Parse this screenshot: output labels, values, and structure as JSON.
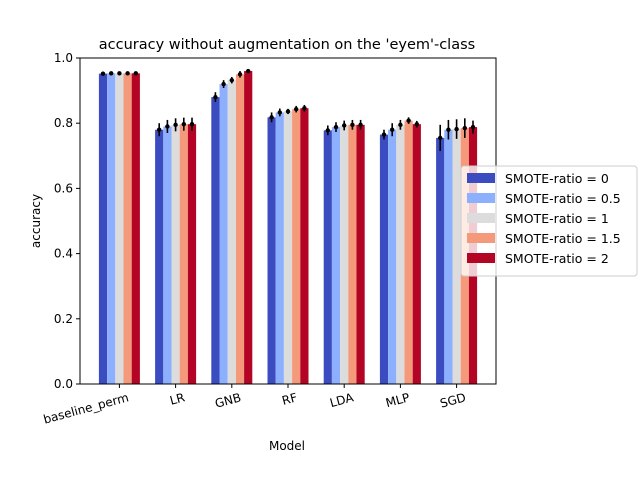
{
  "chart_data": {
    "type": "bar",
    "title": "accuracy without augmentation on the 'eyem'-class",
    "xlabel": "Model",
    "ylabel": "accuracy",
    "ylim": [
      0,
      1.0
    ],
    "yticks": [
      "0.0",
      "0.2",
      "0.4",
      "0.6",
      "0.8",
      "1.0"
    ],
    "categories": [
      "baseline_perm",
      "LR",
      "GNB",
      "RF",
      "LDA",
      "MLP",
      "SGD"
    ],
    "legend_position": "center-right",
    "grid": false,
    "series": [
      {
        "name": "SMOTE-ratio = 0",
        "color": "#3b4cc0",
        "values": [
          0.952,
          0.78,
          0.88,
          0.818,
          0.778,
          0.765,
          0.755
        ],
        "errors": [
          0.006,
          0.02,
          0.015,
          0.015,
          0.015,
          0.015,
          0.04
        ]
      },
      {
        "name": "SMOTE-ratio = 0.5",
        "color": "#8db0fe",
        "values": [
          0.953,
          0.79,
          0.92,
          0.833,
          0.788,
          0.78,
          0.78
        ],
        "errors": [
          0.005,
          0.02,
          0.012,
          0.012,
          0.015,
          0.02,
          0.03
        ]
      },
      {
        "name": "SMOTE-ratio = 1",
        "color": "#dddcdc",
        "values": [
          0.953,
          0.795,
          0.932,
          0.836,
          0.793,
          0.795,
          0.782
        ],
        "errors": [
          0.005,
          0.02,
          0.01,
          0.008,
          0.015,
          0.015,
          0.03
        ]
      },
      {
        "name": "SMOTE-ratio = 1.5",
        "color": "#f49a7b",
        "values": [
          0.953,
          0.797,
          0.95,
          0.843,
          0.795,
          0.808,
          0.785
        ],
        "errors": [
          0.005,
          0.02,
          0.01,
          0.01,
          0.015,
          0.01,
          0.03
        ]
      },
      {
        "name": "SMOTE-ratio = 2",
        "color": "#b40426",
        "values": [
          0.953,
          0.797,
          0.96,
          0.846,
          0.795,
          0.797,
          0.788
        ],
        "errors": [
          0.005,
          0.02,
          0.005,
          0.01,
          0.015,
          0.01,
          0.02
        ]
      }
    ]
  }
}
